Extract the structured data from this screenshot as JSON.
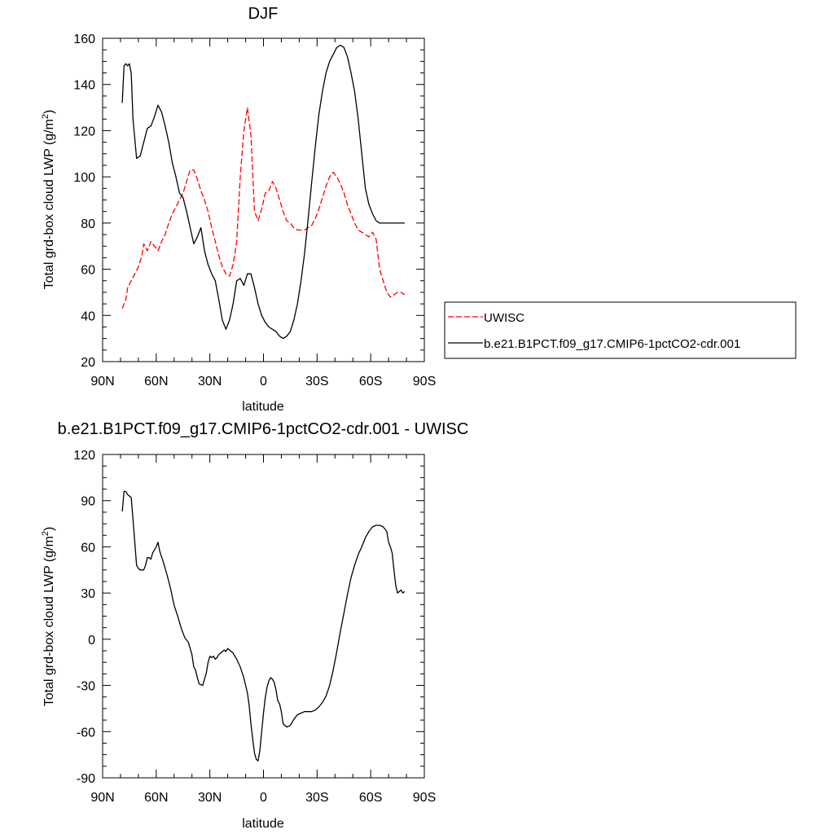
{
  "chart_data": [
    {
      "type": "line",
      "title": "DJF",
      "xlabel": "latitude",
      "ylabel": "Total grd-box cloud LWP (g/m²)",
      "ylabel_main": "Total grd-box cloud LWP (g/m",
      "ylabel_sup": "2",
      "ylabel_end": ")",
      "xlim": [
        90,
        -90
      ],
      "ylim": [
        20,
        160
      ],
      "x_ticks": [
        90,
        60,
        30,
        0,
        -30,
        -60,
        -90
      ],
      "x_tick_labels": [
        "90N",
        "60N",
        "30N",
        "0",
        "30S",
        "60S",
        "90S"
      ],
      "y_ticks": [
        20,
        40,
        60,
        80,
        100,
        120,
        140,
        160
      ],
      "y_tick_labels": [
        "20",
        "40",
        "60",
        "80",
        "100",
        "120",
        "140",
        "160"
      ],
      "series": [
        {
          "name": "UWISC",
          "color": "#ff0000",
          "dashed": true,
          "x": [
            79,
            77,
            76,
            74,
            72,
            70,
            68,
            67,
            65,
            63,
            61,
            59,
            57,
            55,
            53,
            51,
            49,
            47,
            45,
            43,
            41,
            39,
            37,
            35,
            33,
            31,
            29,
            27,
            25,
            23,
            21,
            19,
            17,
            15,
            13,
            11,
            9,
            7,
            5,
            3,
            1,
            -1,
            -3,
            -5,
            -7,
            -9,
            -11,
            -13,
            -15,
            -17,
            -19,
            -21,
            -23,
            -25,
            -27,
            -29,
            -31,
            -33,
            -35,
            -37,
            -39,
            -41,
            -43,
            -45,
            -47,
            -49,
            -51,
            -53,
            -55,
            -57,
            -59,
            -61,
            -63,
            -65,
            -67,
            -69,
            -71,
            -73,
            -75,
            -77,
            -79
          ],
          "values": [
            43,
            47,
            52,
            55,
            58,
            61,
            66,
            71,
            68,
            72,
            70,
            68,
            72,
            75,
            80,
            84,
            87,
            90,
            93,
            98,
            103,
            103,
            99,
            94,
            90,
            85,
            78,
            72,
            66,
            61,
            58,
            57,
            62,
            72,
            100,
            120,
            130,
            118,
            85,
            81,
            86,
            93,
            94,
            98,
            95,
            90,
            85,
            81,
            80,
            78,
            77,
            77,
            77,
            78,
            79,
            82,
            86,
            91,
            96,
            100,
            102,
            100,
            97,
            93,
            88,
            84,
            80,
            77,
            76,
            75,
            74,
            76,
            73,
            60,
            55,
            50,
            48,
            49,
            50,
            50,
            49
          ]
        },
        {
          "name": "b.e21.B1PCT.f09_g17.CMIP6-1pctCO2-cdr.001",
          "color": "#000000",
          "dashed": false,
          "x": [
            79,
            78,
            77,
            76,
            75,
            74,
            73,
            71,
            69,
            67,
            65,
            63,
            61,
            59,
            57,
            55,
            53,
            51,
            49,
            47,
            45,
            43,
            41,
            39,
            37,
            35,
            33,
            31,
            29,
            27,
            25,
            23,
            21,
            19,
            17,
            15,
            13,
            11,
            9,
            7,
            5,
            3,
            1,
            -1,
            -3,
            -5,
            -7,
            -9,
            -11,
            -13,
            -15,
            -17,
            -19,
            -21,
            -23,
            -25,
            -27,
            -29,
            -31,
            -33,
            -35,
            -37,
            -39,
            -41,
            -43,
            -45,
            -47,
            -49,
            -51,
            -53,
            -55,
            -57,
            -59,
            -61,
            -63,
            -65,
            -67,
            -69,
            -71,
            -73,
            -75,
            -77,
            -79
          ],
          "values": [
            132,
            148,
            149,
            148,
            149,
            145,
            125,
            108,
            109,
            115,
            121,
            122,
            126,
            131,
            128,
            122,
            115,
            106,
            100,
            93,
            91,
            85,
            78,
            71,
            74,
            78,
            68,
            62,
            58,
            55,
            47,
            38,
            34,
            38,
            45,
            55,
            56,
            53,
            58,
            58,
            52,
            45,
            40,
            37,
            35,
            34,
            33,
            31,
            30,
            31,
            33,
            38,
            45,
            55,
            67,
            82,
            98,
            113,
            127,
            137,
            145,
            150,
            153,
            156,
            157,
            156,
            152,
            145,
            137,
            125,
            110,
            95,
            88,
            84,
            81,
            80,
            80,
            80,
            80,
            80,
            80,
            80,
            80
          ]
        }
      ],
      "legend": {
        "placement": "right",
        "entries": [
          "UWISC",
          "b.e21.B1PCT.f09_g17.CMIP6-1pctCO2-cdr.001"
        ]
      },
      "grid": false
    },
    {
      "type": "line",
      "title": "b.e21.B1PCT.f09_g17.CMIP6-1pctCO2-cdr.001 - UWISC",
      "xlabel": "latitude",
      "ylabel": "Total grd-box cloud LWP (g/m²)",
      "ylabel_main": "Total grd-box cloud LWP (g/m",
      "ylabel_sup": "2",
      "ylabel_end": ")",
      "xlim": [
        90,
        -90
      ],
      "ylim": [
        -90,
        120
      ],
      "x_ticks": [
        90,
        60,
        30,
        0,
        -30,
        -60,
        -90
      ],
      "x_tick_labels": [
        "90N",
        "60N",
        "30N",
        "0",
        "30S",
        "60S",
        "90S"
      ],
      "y_ticks": [
        -90,
        -60,
        -30,
        0,
        30,
        60,
        90,
        120
      ],
      "y_tick_labels": [
        "-90",
        "-60",
        "-30",
        "0",
        "30",
        "60",
        "90",
        "120"
      ],
      "series": [
        {
          "color": "#000000",
          "dashed": false,
          "x": [
            79,
            78,
            77,
            76,
            74,
            73,
            72,
            71,
            70,
            69,
            67,
            66,
            65,
            64,
            63,
            62,
            61,
            60,
            59,
            58,
            56,
            54,
            52,
            50,
            48,
            46,
            44,
            42,
            41,
            40,
            39,
            38,
            37,
            36,
            34,
            32,
            31,
            30,
            29,
            28,
            27,
            26,
            25,
            24,
            23,
            22,
            21,
            20,
            19,
            17,
            15,
            13,
            11,
            9,
            8,
            7,
            6,
            5,
            4,
            3,
            2,
            1,
            0,
            -1,
            -2,
            -3,
            -4,
            -5,
            -6,
            -7,
            -8,
            -9,
            -10,
            -11,
            -12,
            -13,
            -15,
            -17,
            -19,
            -21,
            -23,
            -25,
            -27,
            -29,
            -31,
            -33,
            -35,
            -37,
            -39,
            -41,
            -43,
            -45,
            -47,
            -49,
            -51,
            -53,
            -55,
            -57,
            -59,
            -61,
            -63,
            -65,
            -67,
            -69,
            -70,
            -71,
            -72,
            -73,
            -74,
            -75,
            -76,
            -77,
            -78,
            -79
          ],
          "values": [
            83,
            96,
            96,
            94,
            92,
            78,
            63,
            48,
            46,
            45,
            45,
            48,
            53,
            53,
            52,
            56,
            58,
            60,
            63,
            57,
            50,
            42,
            33,
            22,
            15,
            7,
            1,
            -2,
            -6,
            -10,
            -18,
            -20,
            -25,
            -29,
            -30,
            -22,
            -15,
            -11,
            -12,
            -11,
            -13,
            -12,
            -10,
            -9,
            -8,
            -7,
            -8,
            -6,
            -7,
            -9,
            -13,
            -18,
            -25,
            -35,
            -43,
            -55,
            -65,
            -74,
            -78,
            -79,
            -72,
            -60,
            -48,
            -38,
            -31,
            -27,
            -25,
            -26,
            -28,
            -33,
            -40,
            -42,
            -47,
            -55,
            -56,
            -57,
            -56,
            -52,
            -49,
            -48,
            -47,
            -47,
            -47,
            -46,
            -44,
            -41,
            -37,
            -30,
            -20,
            -8,
            5,
            17,
            29,
            40,
            48,
            55,
            60,
            66,
            70,
            73,
            74,
            74,
            73,
            70,
            63,
            60,
            56,
            45,
            35,
            30,
            31,
            32,
            30,
            31
          ]
        }
      ],
      "legend": null,
      "grid": false
    }
  ]
}
